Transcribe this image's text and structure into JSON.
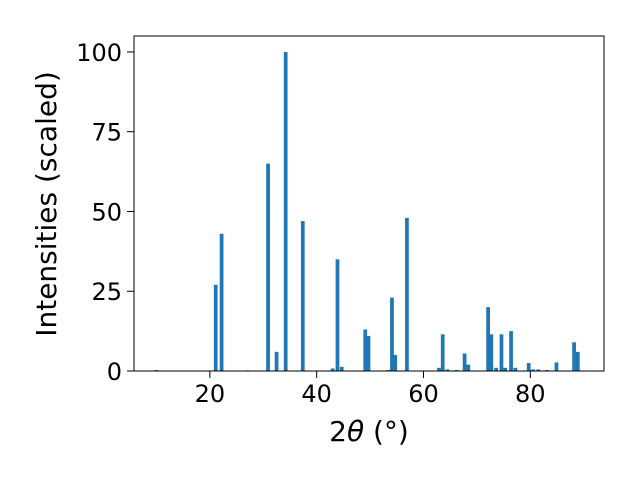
{
  "chart_data": {
    "type": "bar",
    "xlabel_main": "2",
    "xlabel_theta": "θ",
    "xlabel_unit": " (°)",
    "ylabel": "Intensities (scaled)",
    "xlim": [
      5.8,
      93.8
    ],
    "ylim": [
      0,
      105
    ],
    "xticks": [
      20,
      40,
      60,
      80
    ],
    "yticks": [
      0,
      25,
      50,
      75,
      100
    ],
    "bar_width": 0.7,
    "bar_color": "#1f77b4",
    "grid": false,
    "legend": "none",
    "bars": [
      {
        "x": 10.0,
        "y": 0.3
      },
      {
        "x": 21.1,
        "y": 27
      },
      {
        "x": 22.2,
        "y": 43
      },
      {
        "x": 27.0,
        "y": 0.2
      },
      {
        "x": 30.9,
        "y": 65
      },
      {
        "x": 32.5,
        "y": 6
      },
      {
        "x": 34.2,
        "y": 100
      },
      {
        "x": 37.4,
        "y": 47
      },
      {
        "x": 43.0,
        "y": 0.8
      },
      {
        "x": 43.9,
        "y": 35
      },
      {
        "x": 44.7,
        "y": 1.3
      },
      {
        "x": 49.1,
        "y": 13
      },
      {
        "x": 49.7,
        "y": 11
      },
      {
        "x": 53.4,
        "y": 0.3
      },
      {
        "x": 54.1,
        "y": 23
      },
      {
        "x": 54.7,
        "y": 5
      },
      {
        "x": 56.9,
        "y": 48
      },
      {
        "x": 62.9,
        "y": 1
      },
      {
        "x": 63.6,
        "y": 11.5
      },
      {
        "x": 64.5,
        "y": 0.5
      },
      {
        "x": 66.2,
        "y": 0.3
      },
      {
        "x": 67.7,
        "y": 5.5
      },
      {
        "x": 68.4,
        "y": 2
      },
      {
        "x": 72.1,
        "y": 20
      },
      {
        "x": 72.7,
        "y": 11.5
      },
      {
        "x": 73.6,
        "y": 1
      },
      {
        "x": 74.6,
        "y": 11.5
      },
      {
        "x": 75.3,
        "y": 1
      },
      {
        "x": 76.4,
        "y": 12.5
      },
      {
        "x": 77.2,
        "y": 1
      },
      {
        "x": 79.7,
        "y": 2.5
      },
      {
        "x": 80.5,
        "y": 0.5
      },
      {
        "x": 81.5,
        "y": 0.5
      },
      {
        "x": 83.1,
        "y": 0.3
      },
      {
        "x": 84.9,
        "y": 2.7
      },
      {
        "x": 88.2,
        "y": 9
      },
      {
        "x": 88.9,
        "y": 6
      }
    ]
  }
}
